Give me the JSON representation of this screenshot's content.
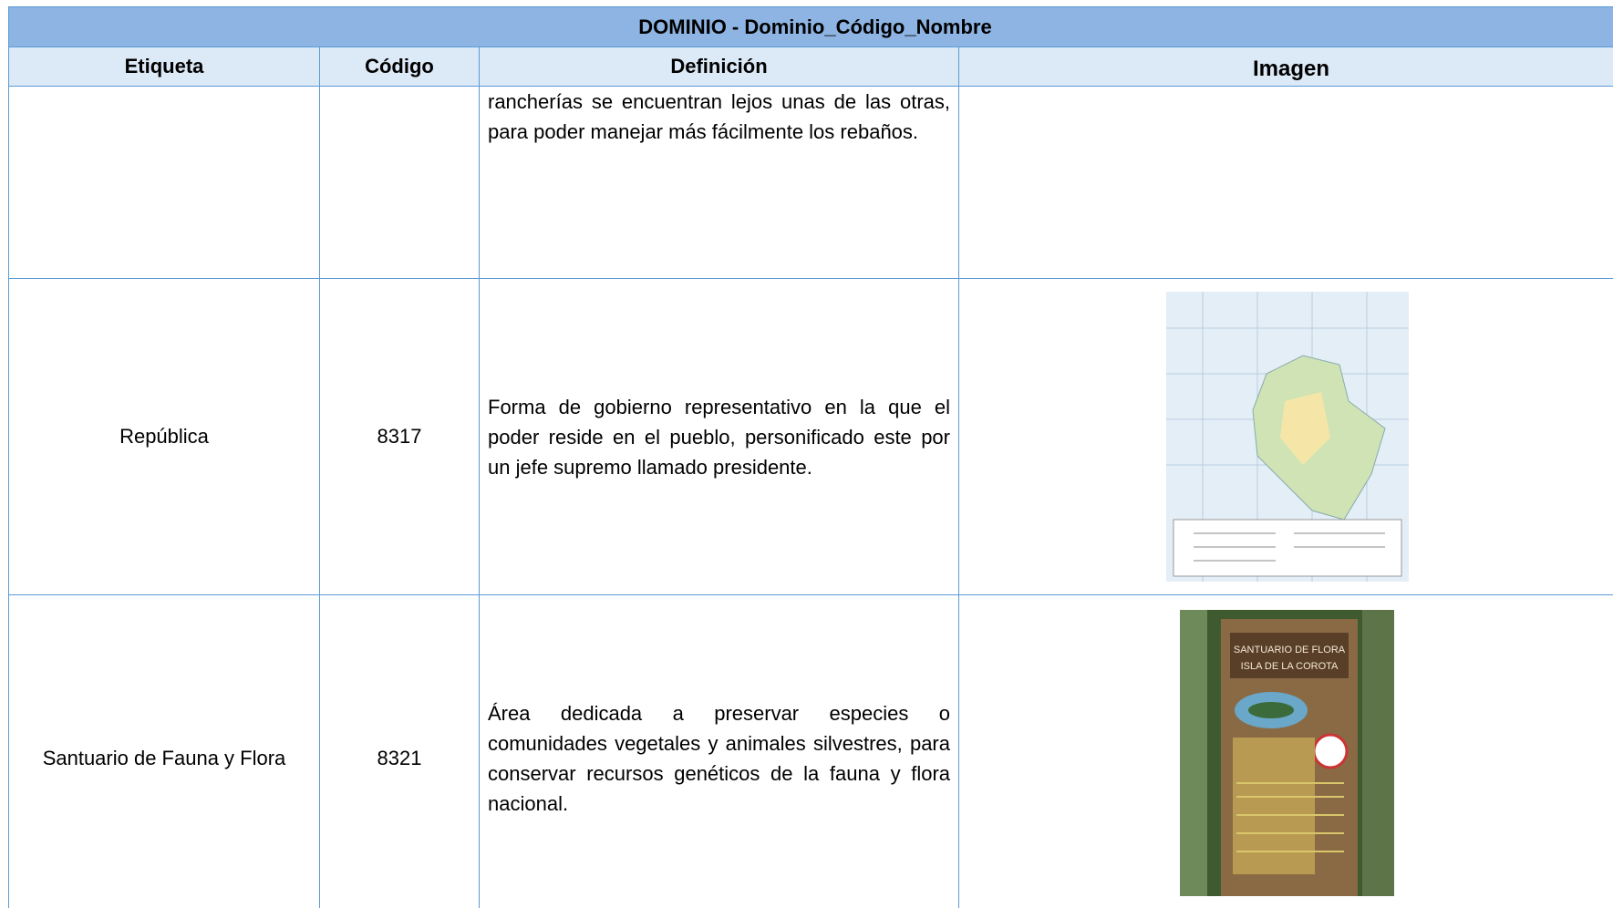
{
  "table": {
    "title": "DOMINIO -  Dominio_Código_Nombre",
    "headers": [
      "Etiqueta",
      "Código",
      "Definición",
      "Imagen"
    ],
    "rows": [
      {
        "definicion": "rancherías se encuentran lejos unas de las otras, para poder manejar más fácilmente los rebaños."
      },
      {
        "etiqueta": "República",
        "codigo": "8317",
        "definicion": "Forma de gobierno representativo en la que el poder reside en el pueblo, personificado este por un jefe supremo llamado presidente."
      },
      {
        "etiqueta": "Santuario de Fauna y Flora",
        "codigo": "8321",
        "definicion": "Área dedicada a preservar especies o comunidades vegetales y animales silvestres, para conservar recursos genéticos de la fauna y flora nacional.",
        "image_text": [
          "SANTUARIO DE FLORA",
          "ISLA DE LA COROTA"
        ]
      }
    ]
  }
}
